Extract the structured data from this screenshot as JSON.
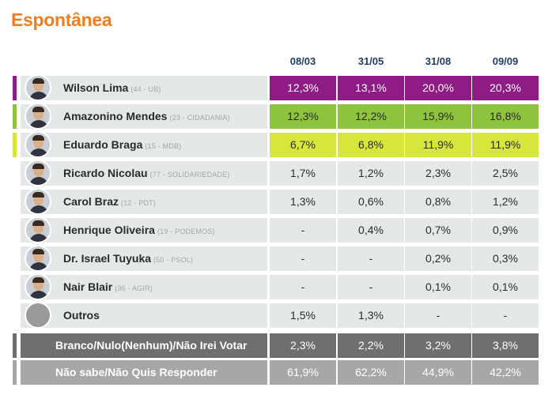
{
  "title": "Espontânea",
  "chart_data": {
    "type": "table",
    "title": "Espontânea",
    "columns": [
      "08/03",
      "31/05",
      "31/08",
      "09/09"
    ],
    "rows": [
      {
        "name": "Wilson Lima",
        "party": "(44 - UB)",
        "values": [
          "12,3%",
          "13,1%",
          "20,0%",
          "20,3%"
        ],
        "color": "#8e1c84",
        "text_color": "#ffffff",
        "highlight": true
      },
      {
        "name": "Amazonino Mendes",
        "party": "(23 - CIDADANIA)",
        "values": [
          "12,3%",
          "12,2%",
          "15,9%",
          "16,8%"
        ],
        "color": "#8ec33d",
        "text_color": "#2b2b2b",
        "highlight": true
      },
      {
        "name": "Eduardo Braga",
        "party": "(15 - MDB)",
        "values": [
          "6,7%",
          "6,8%",
          "11,9%",
          "11,9%"
        ],
        "color": "#d7e63a",
        "text_color": "#2b2b2b",
        "highlight": true
      },
      {
        "name": "Ricardo Nicolau",
        "party": "(77 - SOLIDARIEDADE)",
        "values": [
          "1,7%",
          "1,2%",
          "2,3%",
          "2,5%"
        ],
        "color": "#e4e8e8",
        "text_color": "#2b2b2b",
        "highlight": false
      },
      {
        "name": "Carol Braz",
        "party": "(12 - PDT)",
        "values": [
          "1,3%",
          "0,6%",
          "0,8%",
          "1,2%"
        ],
        "color": "#e4e8e8",
        "text_color": "#2b2b2b",
        "highlight": false
      },
      {
        "name": "Henrique Oliveira",
        "party": "(19 - PODEMOS)",
        "values": [
          "-",
          "0,4%",
          "0,7%",
          "0,9%"
        ],
        "color": "#e4e8e8",
        "text_color": "#2b2b2b",
        "highlight": false
      },
      {
        "name": "Dr. Israel Tuyuka",
        "party": "(50 - PSOL)",
        "values": [
          "-",
          "-",
          "0,2%",
          "0,3%"
        ],
        "color": "#e4e8e8",
        "text_color": "#2b2b2b",
        "highlight": false
      },
      {
        "name": "Nair Blair",
        "party": "(36 - AGIR)",
        "values": [
          "-",
          "-",
          "0,1%",
          "0,1%"
        ],
        "color": "#e4e8e8",
        "text_color": "#2b2b2b",
        "highlight": false
      },
      {
        "name": "Outros",
        "party": "",
        "values": [
          "1,5%",
          "1,3%",
          "-",
          "-"
        ],
        "color": "#e4e8e8",
        "text_color": "#2b2b2b",
        "highlight": false,
        "placeholder_avatar": true
      }
    ],
    "summary_rows": [
      {
        "name": "Branco/Nulo(Nenhum)/Não Irei Votar",
        "values": [
          "2,3%",
          "2,2%",
          "3,2%",
          "3,8%"
        ],
        "color": "#6f6f6f"
      },
      {
        "name": "Não sabe/Não Quis Responder",
        "values": [
          "61,9%",
          "62,2%",
          "44,9%",
          "42,2%"
        ],
        "color": "#a7a7a7"
      }
    ]
  }
}
